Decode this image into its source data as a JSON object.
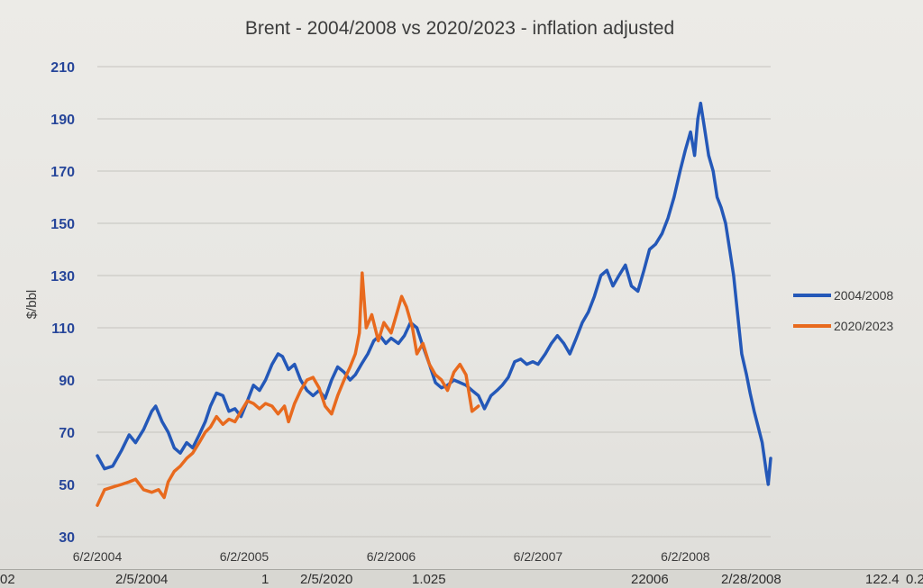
{
  "chart_data": {
    "type": "line",
    "title": "Brent - 2004/2008 vs 2020/2023 - inflation adjusted",
    "ylabel": "$/bbl",
    "xlabel": "",
    "ylim": [
      30,
      210
    ],
    "yticks": [
      30,
      50,
      70,
      90,
      110,
      130,
      150,
      170,
      190,
      210
    ],
    "xticks": [
      "6/2/2004",
      "6/2/2005",
      "6/2/2006",
      "6/2/2007",
      "6/2/2008"
    ],
    "xlim": [
      "2004-06-02",
      "2008-12-31"
    ],
    "grid": true,
    "legend_position": "right",
    "series": [
      {
        "name": "2004/2008",
        "color": "#2458b8",
        "points": [
          [
            "2004-06-02",
            61
          ],
          [
            "2004-06-20",
            56
          ],
          [
            "2004-07-10",
            57
          ],
          [
            "2004-08-01",
            63
          ],
          [
            "2004-08-20",
            69
          ],
          [
            "2004-09-05",
            66
          ],
          [
            "2004-09-25",
            71
          ],
          [
            "2004-10-15",
            78
          ],
          [
            "2004-10-25",
            80
          ],
          [
            "2004-11-10",
            74
          ],
          [
            "2004-11-25",
            70
          ],
          [
            "2004-12-10",
            64
          ],
          [
            "2004-12-25",
            62
          ],
          [
            "2005-01-10",
            66
          ],
          [
            "2005-01-25",
            64
          ],
          [
            "2005-02-10",
            69
          ],
          [
            "2005-02-25",
            74
          ],
          [
            "2005-03-10",
            80
          ],
          [
            "2005-03-25",
            85
          ],
          [
            "2005-04-10",
            84
          ],
          [
            "2005-04-25",
            78
          ],
          [
            "2005-05-10",
            79
          ],
          [
            "2005-05-25",
            76
          ],
          [
            "2005-06-10",
            82
          ],
          [
            "2005-06-25",
            88
          ],
          [
            "2005-07-10",
            86
          ],
          [
            "2005-07-25",
            90
          ],
          [
            "2005-08-10",
            96
          ],
          [
            "2005-08-25",
            100
          ],
          [
            "2005-09-05",
            99
          ],
          [
            "2005-09-20",
            94
          ],
          [
            "2005-10-05",
            96
          ],
          [
            "2005-10-20",
            90
          ],
          [
            "2005-11-05",
            86
          ],
          [
            "2005-11-20",
            84
          ],
          [
            "2005-12-05",
            86
          ],
          [
            "2005-12-20",
            83
          ],
          [
            "2006-01-05",
            90
          ],
          [
            "2006-01-20",
            95
          ],
          [
            "2006-02-05",
            93
          ],
          [
            "2006-02-20",
            90
          ],
          [
            "2006-03-05",
            92
          ],
          [
            "2006-03-20",
            96
          ],
          [
            "2006-04-05",
            100
          ],
          [
            "2006-04-20",
            105
          ],
          [
            "2006-05-05",
            107
          ],
          [
            "2006-05-20",
            104
          ],
          [
            "2006-06-02",
            106
          ],
          [
            "2006-06-20",
            104
          ],
          [
            "2006-07-05",
            107
          ],
          [
            "2006-07-20",
            112
          ],
          [
            "2006-08-05",
            110
          ],
          [
            "2006-08-20",
            103
          ],
          [
            "2006-09-05",
            96
          ],
          [
            "2006-09-20",
            89
          ],
          [
            "2006-10-05",
            87
          ],
          [
            "2006-10-20",
            88
          ],
          [
            "2006-11-05",
            90
          ],
          [
            "2006-11-20",
            89
          ],
          [
            "2006-12-05",
            88
          ],
          [
            "2006-12-20",
            86
          ],
          [
            "2007-01-05",
            84
          ],
          [
            "2007-01-20",
            79
          ],
          [
            "2007-02-05",
            84
          ],
          [
            "2007-02-20",
            86
          ],
          [
            "2007-03-05",
            88
          ],
          [
            "2007-03-20",
            91
          ],
          [
            "2007-04-05",
            97
          ],
          [
            "2007-04-20",
            98
          ],
          [
            "2007-05-05",
            96
          ],
          [
            "2007-05-20",
            97
          ],
          [
            "2007-06-02",
            96
          ],
          [
            "2007-06-20",
            100
          ],
          [
            "2007-07-05",
            104
          ],
          [
            "2007-07-20",
            107
          ],
          [
            "2007-08-05",
            104
          ],
          [
            "2007-08-20",
            100
          ],
          [
            "2007-09-05",
            106
          ],
          [
            "2007-09-20",
            112
          ],
          [
            "2007-10-05",
            116
          ],
          [
            "2007-10-20",
            122
          ],
          [
            "2007-11-05",
            130
          ],
          [
            "2007-11-20",
            132
          ],
          [
            "2007-12-05",
            126
          ],
          [
            "2007-12-20",
            130
          ],
          [
            "2008-01-05",
            134
          ],
          [
            "2008-01-20",
            126
          ],
          [
            "2008-02-05",
            124
          ],
          [
            "2008-02-20",
            132
          ],
          [
            "2008-03-05",
            140
          ],
          [
            "2008-03-20",
            142
          ],
          [
            "2008-04-05",
            146
          ],
          [
            "2008-04-20",
            152
          ],
          [
            "2008-05-05",
            160
          ],
          [
            "2008-05-20",
            170
          ],
          [
            "2008-06-02",
            178
          ],
          [
            "2008-06-15",
            185
          ],
          [
            "2008-06-25",
            176
          ],
          [
            "2008-07-03",
            190
          ],
          [
            "2008-07-10",
            196
          ],
          [
            "2008-07-20",
            186
          ],
          [
            "2008-07-30",
            176
          ],
          [
            "2008-08-10",
            170
          ],
          [
            "2008-08-20",
            160
          ],
          [
            "2008-08-30",
            156
          ],
          [
            "2008-09-10",
            150
          ],
          [
            "2008-09-20",
            140
          ],
          [
            "2008-09-30",
            130
          ],
          [
            "2008-10-10",
            115
          ],
          [
            "2008-10-20",
            100
          ],
          [
            "2008-11-01",
            92
          ],
          [
            "2008-11-10",
            85
          ],
          [
            "2008-11-20",
            78
          ],
          [
            "2008-11-30",
            72
          ],
          [
            "2008-12-10",
            66
          ],
          [
            "2008-12-20",
            55
          ],
          [
            "2008-12-25",
            50
          ],
          [
            "2008-12-31",
            60
          ]
        ]
      },
      {
        "name": "2020/2023",
        "color": "#e86a1e",
        "points": [
          [
            "2004-06-02",
            42
          ],
          [
            "2004-06-20",
            48
          ],
          [
            "2004-07-10",
            49
          ],
          [
            "2004-08-01",
            50
          ],
          [
            "2004-08-20",
            51
          ],
          [
            "2004-09-05",
            52
          ],
          [
            "2004-09-25",
            48
          ],
          [
            "2004-10-15",
            47
          ],
          [
            "2004-11-01",
            48
          ],
          [
            "2004-11-15",
            45
          ],
          [
            "2004-11-25",
            51
          ],
          [
            "2004-12-10",
            55
          ],
          [
            "2004-12-25",
            57
          ],
          [
            "2005-01-10",
            60
          ],
          [
            "2005-01-25",
            62
          ],
          [
            "2005-02-10",
            66
          ],
          [
            "2005-02-25",
            70
          ],
          [
            "2005-03-10",
            72
          ],
          [
            "2005-03-25",
            76
          ],
          [
            "2005-04-10",
            73
          ],
          [
            "2005-04-25",
            75
          ],
          [
            "2005-05-10",
            74
          ],
          [
            "2005-05-25",
            78
          ],
          [
            "2005-06-10",
            82
          ],
          [
            "2005-06-25",
            81
          ],
          [
            "2005-07-10",
            79
          ],
          [
            "2005-07-25",
            81
          ],
          [
            "2005-08-10",
            80
          ],
          [
            "2005-08-25",
            77
          ],
          [
            "2005-09-10",
            80
          ],
          [
            "2005-09-20",
            74
          ],
          [
            "2005-10-05",
            81
          ],
          [
            "2005-10-20",
            86
          ],
          [
            "2005-11-05",
            90
          ],
          [
            "2005-11-20",
            91
          ],
          [
            "2005-12-05",
            87
          ],
          [
            "2005-12-20",
            80
          ],
          [
            "2006-01-05",
            77
          ],
          [
            "2006-01-20",
            84
          ],
          [
            "2006-02-05",
            90
          ],
          [
            "2006-02-20",
            95
          ],
          [
            "2006-03-05",
            100
          ],
          [
            "2006-03-15",
            108
          ],
          [
            "2006-03-22",
            131
          ],
          [
            "2006-04-01",
            110
          ],
          [
            "2006-04-15",
            115
          ],
          [
            "2006-05-01",
            105
          ],
          [
            "2006-05-15",
            112
          ],
          [
            "2006-06-02",
            108
          ],
          [
            "2006-06-15",
            115
          ],
          [
            "2006-06-28",
            122
          ],
          [
            "2006-07-10",
            118
          ],
          [
            "2006-07-25",
            110
          ],
          [
            "2006-08-05",
            100
          ],
          [
            "2006-08-20",
            104
          ],
          [
            "2006-09-05",
            96
          ],
          [
            "2006-09-20",
            92
          ],
          [
            "2006-10-05",
            90
          ],
          [
            "2006-10-20",
            86
          ],
          [
            "2006-11-05",
            93
          ],
          [
            "2006-11-20",
            96
          ],
          [
            "2006-12-05",
            92
          ],
          [
            "2006-12-20",
            78
          ],
          [
            "2007-01-05",
            80
          ]
        ]
      }
    ]
  },
  "bottom_strip": [
    "02",
    "2/5/2004",
    "1",
    "2/5/2020",
    "1.025",
    "22006",
    "2/28/2008",
    "122.4",
    "0.2"
  ]
}
